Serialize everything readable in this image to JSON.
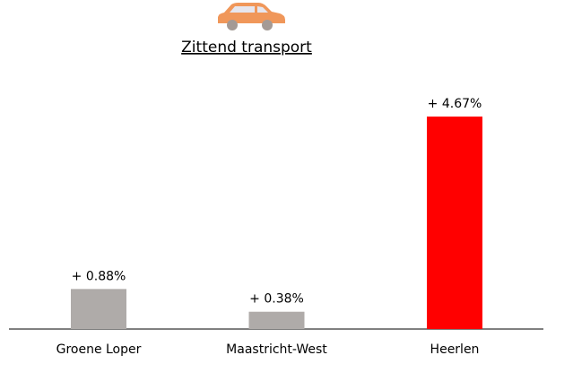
{
  "chart_data": {
    "type": "bar",
    "title": "Zittend transport",
    "categories": [
      "Groene Loper",
      "Maastricht-West",
      "Heerlen"
    ],
    "values": [
      0.88,
      0.38,
      4.67
    ],
    "value_labels": [
      "+ 0.88%",
      "+ 0.38%",
      "+ 4.67%"
    ],
    "colors": [
      "#afaba9",
      "#afaba9",
      "#ff0000"
    ]
  }
}
